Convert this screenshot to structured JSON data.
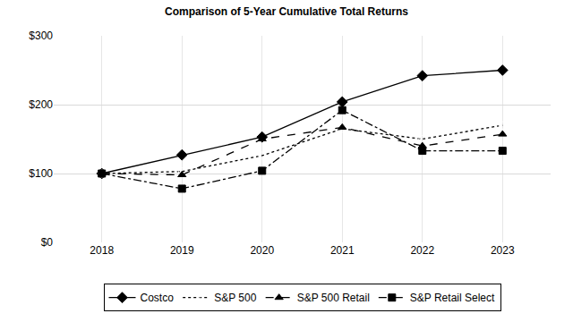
{
  "chart_data": {
    "type": "line",
    "title": "Comparison of 5-Year Cumulative Total Returns",
    "categories": [
      "2018",
      "2019",
      "2020",
      "2021",
      "2022",
      "2023"
    ],
    "series": [
      {
        "name": "Costco",
        "color": "#000000",
        "marker": "diamond",
        "line_style": "solid",
        "values": [
          100,
          127,
          153,
          204,
          242,
          250
        ]
      },
      {
        "name": "S&P 500",
        "color": "#000000",
        "marker": "circle-open",
        "line_style": "dot",
        "values": [
          100,
          103,
          126,
          165,
          150,
          170
        ]
      },
      {
        "name": "S&P 500 Retail",
        "color": "#000000",
        "marker": "triangle-up",
        "line_style": "dash",
        "values": [
          100,
          98,
          150,
          167,
          140,
          157
        ]
      },
      {
        "name": "S&P Retail Select",
        "color": "#000000",
        "marker": "square",
        "line_style": "dashdot",
        "values": [
          100,
          78,
          104,
          192,
          133,
          133
        ]
      }
    ],
    "ylim": [
      0,
      300
    ],
    "yticks": [
      {
        "value": 0,
        "label": "$0"
      },
      {
        "value": 100,
        "label": "$100"
      },
      {
        "value": 200,
        "label": "$200"
      },
      {
        "value": 300,
        "label": "$300"
      }
    ],
    "grid": true,
    "legend": "bottom"
  }
}
